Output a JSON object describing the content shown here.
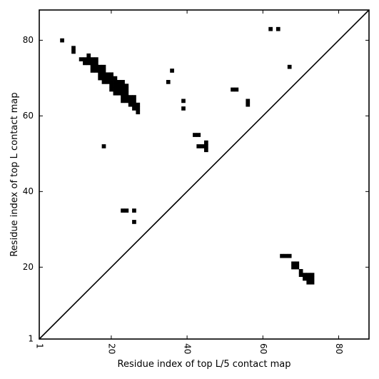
{
  "chart_data": {
    "type": "heatmap",
    "title": "",
    "xlabel": "Residue index of top L/5 contact map",
    "ylabel": "Residue index of top L contact map",
    "xlim": [
      1,
      88
    ],
    "ylim": [
      1,
      88
    ],
    "x_ticks": [
      1,
      20,
      40,
      60,
      80
    ],
    "x_tick_labels": [
      "1",
      "20",
      "40",
      "60",
      "80"
    ],
    "y_ticks": [
      1,
      20,
      40,
      60,
      80
    ],
    "y_tick_labels": [
      "1",
      "20",
      "40",
      "60",
      "80"
    ],
    "grid": false,
    "diagonal_line": true,
    "contact_color": "#000000",
    "background_color": "#ffffff",
    "upper_left_contacts": [
      [
        7,
        80
      ],
      [
        10,
        78
      ],
      [
        10,
        77
      ],
      [
        12,
        75
      ],
      [
        13,
        75
      ],
      [
        14,
        75
      ],
      [
        15,
        75
      ],
      [
        16,
        75
      ],
      [
        14,
        76
      ],
      [
        13,
        74
      ],
      [
        14,
        74
      ],
      [
        15,
        74
      ],
      [
        16,
        74
      ],
      [
        15,
        73
      ],
      [
        16,
        73
      ],
      [
        17,
        73
      ],
      [
        18,
        73
      ],
      [
        15,
        72
      ],
      [
        16,
        72
      ],
      [
        17,
        72
      ],
      [
        18,
        72
      ],
      [
        17,
        71
      ],
      [
        18,
        71
      ],
      [
        19,
        71
      ],
      [
        20,
        71
      ],
      [
        17,
        70
      ],
      [
        18,
        70
      ],
      [
        19,
        70
      ],
      [
        20,
        70
      ],
      [
        21,
        70
      ],
      [
        18,
        69
      ],
      [
        19,
        69
      ],
      [
        20,
        69
      ],
      [
        21,
        69
      ],
      [
        22,
        69
      ],
      [
        23,
        69
      ],
      [
        20,
        68
      ],
      [
        21,
        68
      ],
      [
        22,
        68
      ],
      [
        23,
        68
      ],
      [
        24,
        68
      ],
      [
        20,
        67
      ],
      [
        21,
        67
      ],
      [
        22,
        67
      ],
      [
        23,
        67
      ],
      [
        24,
        67
      ],
      [
        21,
        66
      ],
      [
        22,
        66
      ],
      [
        23,
        66
      ],
      [
        24,
        66
      ],
      [
        23,
        65
      ],
      [
        24,
        65
      ],
      [
        25,
        65
      ],
      [
        26,
        65
      ],
      [
        23,
        64
      ],
      [
        24,
        64
      ],
      [
        25,
        64
      ],
      [
        26,
        64
      ],
      [
        25,
        63
      ],
      [
        26,
        63
      ],
      [
        27,
        63
      ],
      [
        26,
        62
      ],
      [
        27,
        62
      ],
      [
        27,
        61
      ],
      [
        36,
        72
      ],
      [
        35,
        69
      ],
      [
        39,
        64
      ],
      [
        39,
        62
      ],
      [
        42,
        55
      ],
      [
        43,
        55
      ],
      [
        43,
        52
      ],
      [
        44,
        52
      ],
      [
        45,
        53
      ],
      [
        45,
        52
      ],
      [
        45,
        51
      ],
      [
        52,
        67
      ],
      [
        53,
        67
      ],
      [
        56,
        64
      ],
      [
        56,
        63
      ],
      [
        62,
        83
      ],
      [
        64,
        83
      ],
      [
        67,
        73
      ],
      [
        18,
        52
      ],
      [
        23,
        35
      ],
      [
        24,
        35
      ],
      [
        26,
        35
      ],
      [
        26,
        32
      ]
    ],
    "lower_right_contacts": [
      [
        65,
        23
      ],
      [
        66,
        23
      ],
      [
        67,
        23
      ],
      [
        68,
        21
      ],
      [
        69,
        21
      ],
      [
        68,
        20
      ],
      [
        69,
        20
      ],
      [
        70,
        19
      ],
      [
        70,
        18
      ],
      [
        71,
        18
      ],
      [
        72,
        18
      ],
      [
        73,
        18
      ],
      [
        71,
        17
      ],
      [
        72,
        17
      ],
      [
        73,
        17
      ],
      [
        72,
        16
      ],
      [
        73,
        16
      ]
    ]
  }
}
